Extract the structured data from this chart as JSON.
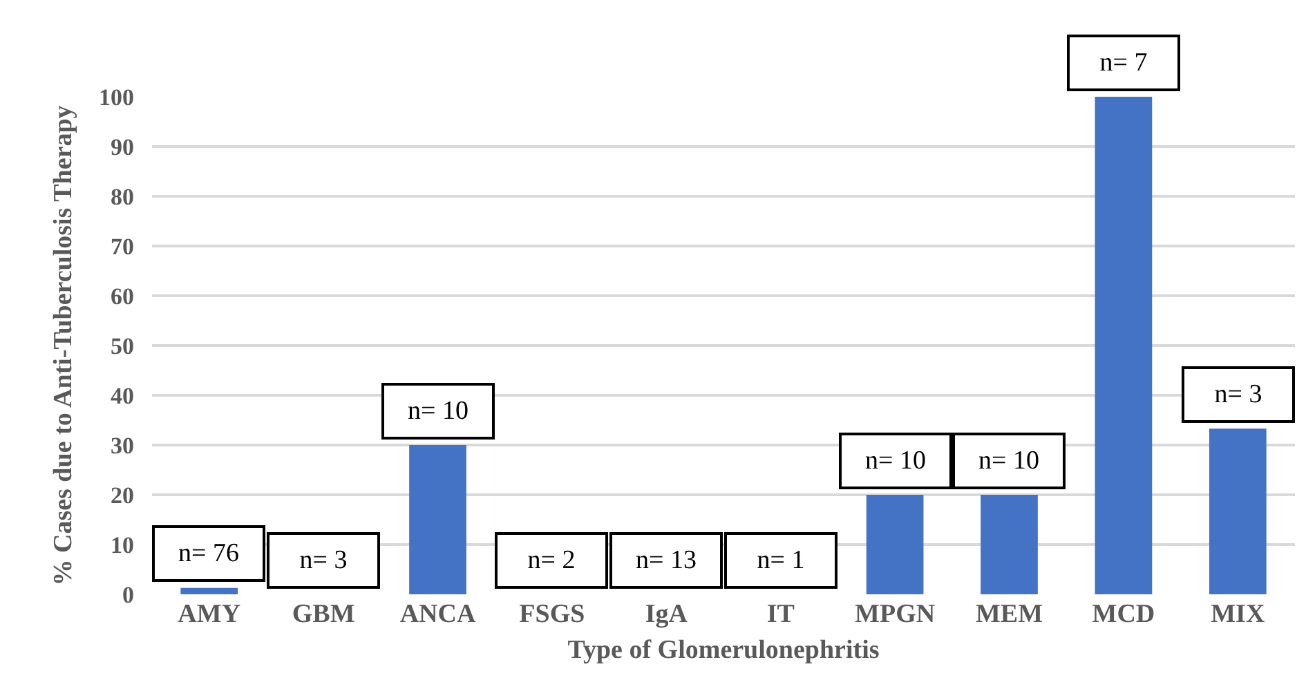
{
  "chart_data": {
    "type": "bar",
    "xlabel": "Type of Glomerulonephritis",
    "ylabel": "% Cases due to Anti-Tuberculosis Therapy",
    "categories": [
      "AMY",
      "GBM",
      "ANCA",
      "FSGS",
      "IgA",
      "IT",
      "MPGN",
      "MEM",
      "MCD",
      "MIX"
    ],
    "values": [
      1.3,
      0,
      30,
      0,
      0,
      0,
      20,
      20,
      100,
      33.3
    ],
    "color": "#4472c4",
    "ylim": [
      0,
      100
    ],
    "yticks": [
      0,
      10,
      20,
      30,
      40,
      50,
      60,
      70,
      80,
      90,
      100
    ],
    "grid": "y",
    "annotations": [
      {
        "text": "n= 76",
        "x": "AMY",
        "y": 1.3
      },
      {
        "text": "n= 3",
        "x": "GBM",
        "y": 0
      },
      {
        "text": "n= 10",
        "x": "ANCA",
        "y": 30
      },
      {
        "text": "n= 2",
        "x": "FSGS",
        "y": 0
      },
      {
        "text": "n= 13",
        "x": "IgA",
        "y": 0
      },
      {
        "text": "n= 1",
        "x": "IT",
        "y": 0
      },
      {
        "text": "n= 10",
        "x": "MPGN",
        "y": 20
      },
      {
        "text": "n= 10",
        "x": "MEM",
        "y": 20
      },
      {
        "text": "n= 7",
        "x": "MCD",
        "y": 100
      },
      {
        "text": "n= 3",
        "x": "MIX",
        "y": 33.3
      }
    ]
  }
}
